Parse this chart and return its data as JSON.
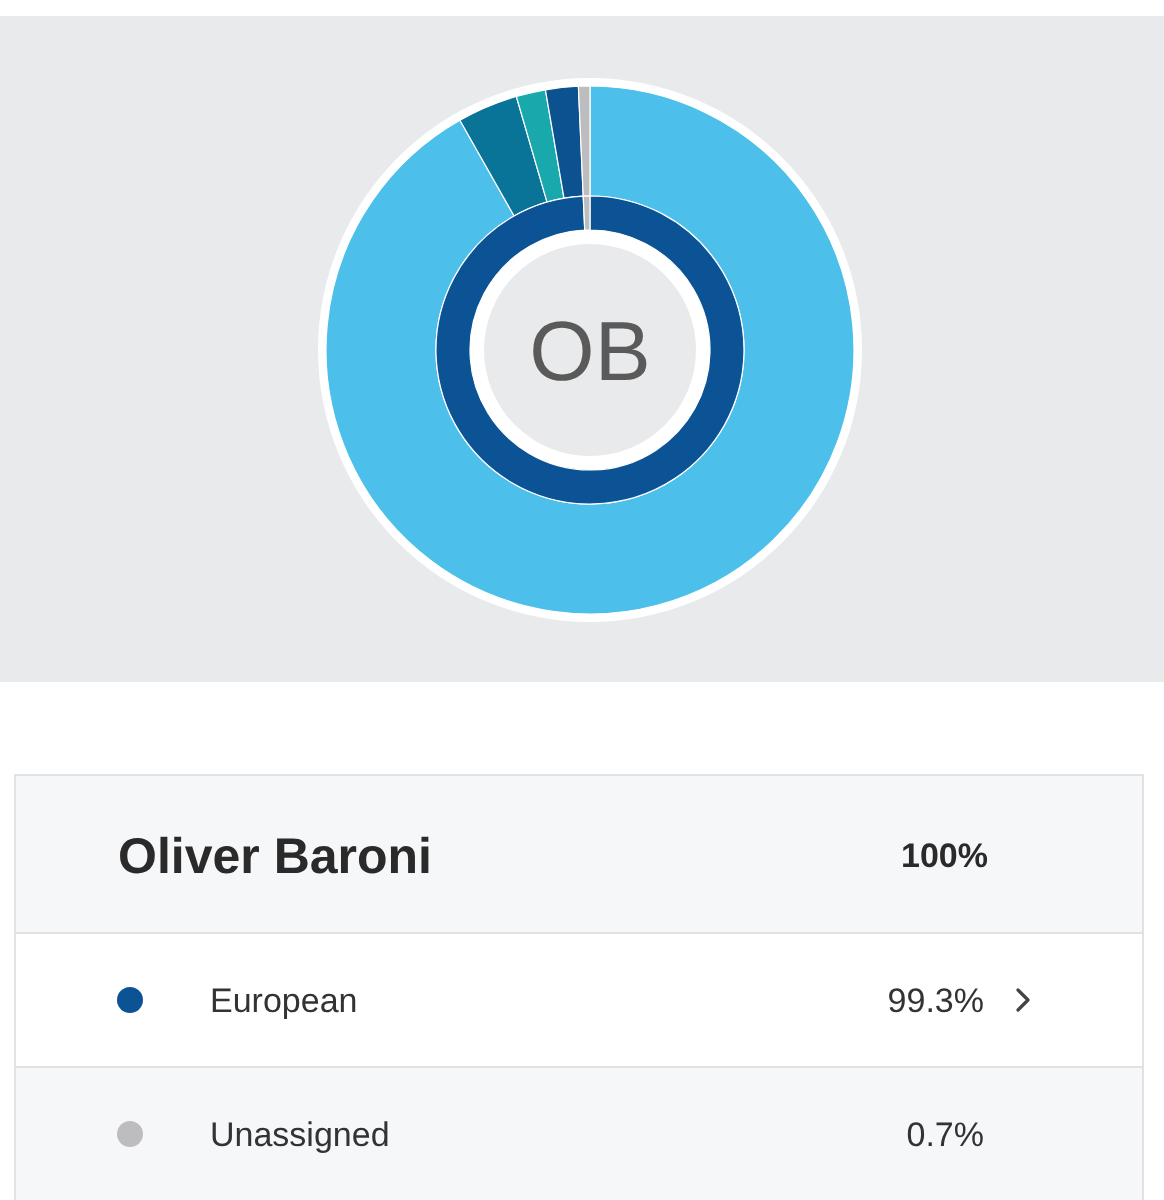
{
  "chart_data": [
    {
      "type": "donut",
      "categories": [
        null,
        null,
        null,
        null,
        null
      ],
      "values": [
        91.8,
        3.7,
        1.8,
        2.0,
        0.7
      ],
      "colors": [
        "#4cc0ea",
        "#0a7398",
        "#19a9ad",
        "#0c5291",
        "#bdbdbf"
      ]
    },
    {
      "type": "donut",
      "title": "Oliver Baroni",
      "categories": [
        "European",
        "Unassigned"
      ],
      "values": [
        99.3,
        0.7
      ],
      "colors": [
        "#0b5394",
        "#bdbdbf"
      ],
      "value_labels": [
        "99.3%",
        "0.7%"
      ],
      "totals": [
        "100%"
      ],
      "annotations": [
        "OB"
      ],
      "legend": "bottom"
    }
  ]
}
